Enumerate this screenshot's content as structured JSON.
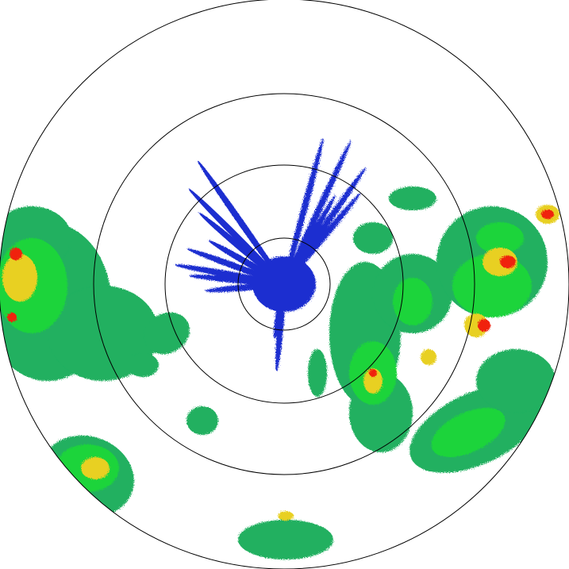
{
  "radar": {
    "range_ring_count": 4,
    "colors": {
      "weak": "#1f2fd0",
      "light": "#20b060",
      "moderate": "#1ad43a",
      "heavy": "#e8d020",
      "intense": "#f02010",
      "ring": "#000000"
    }
  }
}
